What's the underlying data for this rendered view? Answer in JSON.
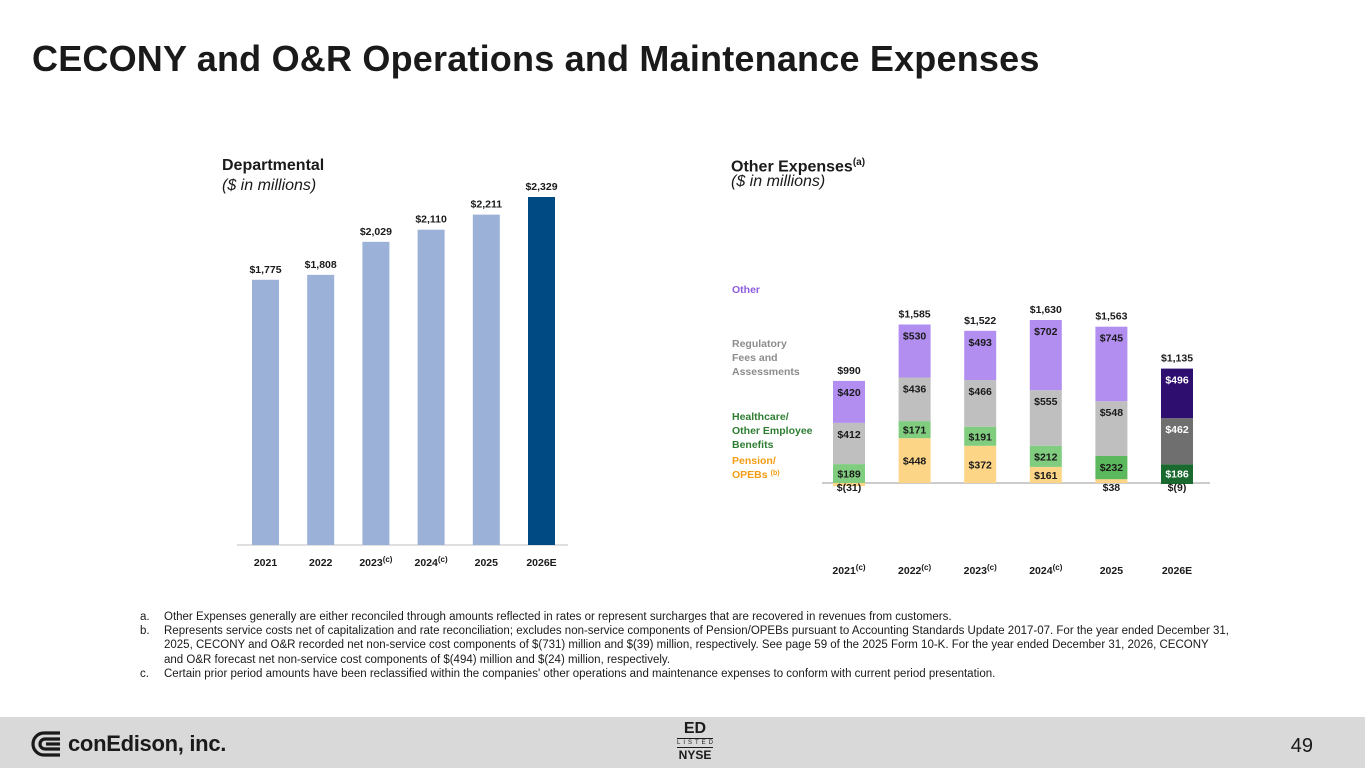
{
  "page": {
    "title": "CECONY and O&R Operations and Maintenance Expenses",
    "page_number": "49"
  },
  "footer": {
    "company": "conEdison, inc.",
    "ticker": "ED",
    "listed": "LISTED",
    "exchange": "NYSE"
  },
  "footnotes": [
    {
      "letter": "a.",
      "text": "Other Expenses generally are either reconciled through amounts reflected in rates or represent surcharges that are recovered in revenues from customers."
    },
    {
      "letter": "b.",
      "text": "Represents service costs net of capitalization and rate reconciliation; excludes non-service components of Pension/OPEBs pursuant to Accounting Standards Update 2017-07. For the year ended December 31, 2025, CECONY and O&R recorded net non-service cost components of $(731) million and $(39) million, respectively. See page 59 of the 2025 Form 10-K. For the year ended December 31, 2026, CECONY and O&R forecast net non-service cost components of $(494) million and $(24) million, respectively."
    },
    {
      "letter": "c.",
      "text": "Certain prior period amounts have been reclassified within the companies' other operations and maintenance expenses to conform with current period presentation."
    }
  ],
  "chart_data": [
    {
      "type": "bar",
      "title": "Departmental",
      "subtitle": "($ in millions)",
      "categories": [
        "2021",
        "2022",
        "2023",
        "2024",
        "2025",
        "2026E"
      ],
      "category_notes": [
        "",
        "",
        "(c)",
        "(c)",
        "",
        ""
      ],
      "values": [
        1775,
        1808,
        2029,
        2110,
        2211,
        2329
      ],
      "value_labels": [
        "$1,775",
        "$1,808",
        "$2,029",
        "$2,110",
        "$2,211",
        "$2,329"
      ],
      "colors": [
        "#9bb1d8",
        "#9bb1d8",
        "#9bb1d8",
        "#9bb1d8",
        "#9bb1d8",
        "#004a84"
      ],
      "ylim": [
        0,
        2329
      ]
    },
    {
      "type": "stacked-bar",
      "title": "Other Expenses",
      "title_note": "(a)",
      "subtitle": "($ in millions)",
      "categories": [
        "2021",
        "2022",
        "2023",
        "2024",
        "2025",
        "2026E"
      ],
      "category_notes": [
        "(c)",
        "(c)",
        "(c)",
        "(c)",
        "",
        ""
      ],
      "totals": [
        "$990",
        "$1,585",
        "$1,522",
        "$1,630",
        "$1,563",
        "$1,135"
      ],
      "series": [
        {
          "name": "Pension/ OPEBs",
          "note": "(b)",
          "values": [
            -31,
            448,
            372,
            161,
            38,
            -9
          ],
          "labels": [
            "$(31)",
            "$448",
            "$372",
            "$161",
            "$38",
            "$(9)"
          ],
          "colors": [
            "#fcd587",
            "#fcd587",
            "#fcd587",
            "#fcd587",
            "#fcd587",
            "#1a6a30"
          ],
          "legend_color": "#f39c12"
        },
        {
          "name": "Healthcare/ Other Employee Benefits",
          "values": [
            189,
            171,
            191,
            212,
            232,
            186
          ],
          "labels": [
            "$189",
            "$171",
            "$191",
            "$212",
            "$232",
            "$186"
          ],
          "colors": [
            "#80cd7f",
            "#80cd7f",
            "#80cd7f",
            "#80cd7f",
            "#5cb85c",
            "#1a6a30"
          ],
          "legend_color": "#2e7d32"
        },
        {
          "name": "Regulatory Fees and Assessments",
          "values": [
            412,
            436,
            466,
            555,
            548,
            462
          ],
          "labels": [
            "$412",
            "$436",
            "$466",
            "$555",
            "$548",
            "$462"
          ],
          "colors": [
            "#bfbfbf",
            "#bfbfbf",
            "#bfbfbf",
            "#bfbfbf",
            "#bfbfbf",
            "#6f6f6f"
          ],
          "legend_color": "#8c8c8c"
        },
        {
          "name": "Other",
          "values": [
            420,
            530,
            493,
            702,
            745,
            496
          ],
          "labels": [
            "$420",
            "$530",
            "$493",
            "$702",
            "$745",
            "$496"
          ],
          "colors": [
            "#b28ef0",
            "#b28ef0",
            "#b28ef0",
            "#b28ef0",
            "#b28ef0",
            "#2e0e6e"
          ],
          "legend_color": "#8e5de0"
        }
      ]
    }
  ]
}
